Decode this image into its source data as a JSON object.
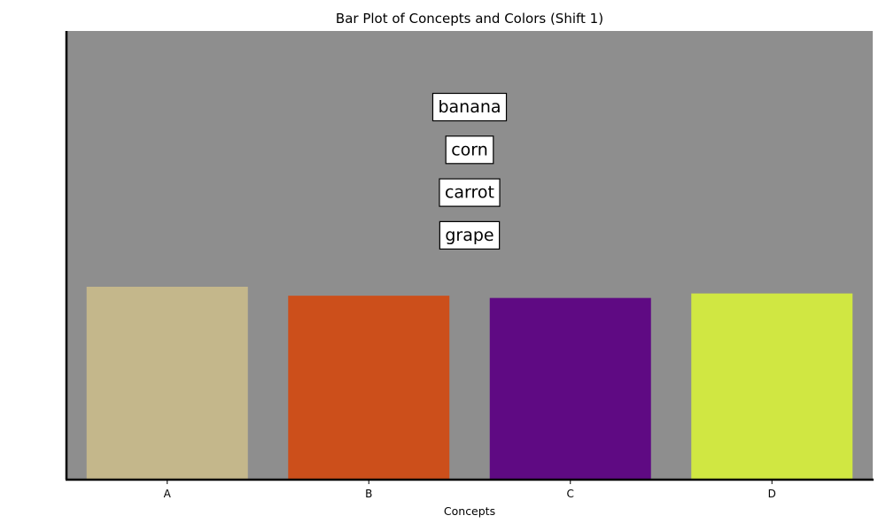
{
  "chart_data": {
    "type": "bar",
    "title": "Bar Plot of Concepts and Colors (Shift 1)",
    "xlabel": "Concepts",
    "ylabel": "",
    "categories": [
      "A",
      "B",
      "C",
      "D"
    ],
    "values": [
      0.43,
      0.41,
      0.405,
      0.415
    ],
    "ylim": [
      0,
      1
    ],
    "bar_colors": [
      "#c4b78b",
      "#cc4f1b",
      "#5f0a83",
      "#d0e742"
    ],
    "plot_background": "#8e8e8e",
    "y_ticks_shown": false,
    "annotations": [
      "banana",
      "corn",
      "carrot",
      "grape"
    ]
  }
}
